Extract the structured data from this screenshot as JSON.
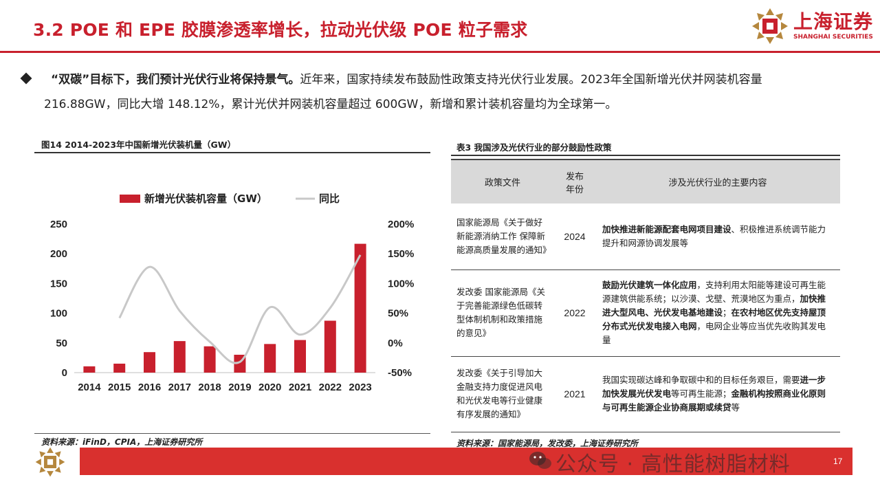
{
  "header": {
    "title": "3.2 POE 和 EPE 胶膜渗透率增长，拉动光伏级 POE 粒子需求",
    "logo_cn": "上海证券",
    "logo_en": "SHANGHAI SECURITIES",
    "accent_color": "#c8202d"
  },
  "bullet": {
    "lead": "“双碳”目标下，我们预计光伏行业将保持景气。",
    "line1_rest": "近年来，国家持续发布鼓励性政策支持光伏行业发展。2023年全国新增光伏并网装机容量",
    "line2": "216.88GW，同比大增 148.12%，累计光伏并网装机容量超过 600GW，新增和累计装机容量均为全球第一。"
  },
  "figure": {
    "title": "图14 2014-2023年中国新增光伏装机量（GW）",
    "source": "资料来源：iFinD，CPIA，上海证券研究所"
  },
  "chart_data": {
    "type": "bar",
    "categories": [
      "2014",
      "2015",
      "2016",
      "2017",
      "2018",
      "2019",
      "2020",
      "2021",
      "2022",
      "2023"
    ],
    "series": [
      {
        "name": "新增光伏装机容量（GW）",
        "type": "bar",
        "axis": "left",
        "color": "#c8202d",
        "values": [
          10.6,
          15.1,
          34.5,
          53.1,
          44.3,
          30.1,
          48.2,
          54.9,
          87.4,
          216.9
        ]
      },
      {
        "name": "同比",
        "type": "line",
        "axis": "right",
        "color": "#c8c8c8",
        "values": [
          null,
          42.0,
          128.0,
          54.0,
          2.0,
          -32.0,
          60.0,
          14.0,
          59.0,
          148.1
        ]
      }
    ],
    "left_axis": {
      "ticks": [
        "0",
        "50",
        "100",
        "150",
        "200",
        "250"
      ],
      "ylim": [
        0,
        250
      ]
    },
    "right_axis": {
      "ticks": [
        "-50%",
        "0%",
        "50%",
        "100%",
        "150%",
        "200%"
      ],
      "ylim": [
        -50,
        200
      ]
    },
    "legend_position": "top",
    "grid": false
  },
  "table": {
    "title": "表3 我国涉及光伏行业的部分鼓励性政策",
    "headers": [
      "政策文件",
      "发布年份",
      "涉及光伏行业的主要内容"
    ],
    "header_year_l1": "发布",
    "header_year_l2": "年份",
    "rows": [
      {
        "doc": "国家能源局《关于做好新能源消纳工作 保障新能源高质量发展的通知》",
        "year": "2024",
        "b1": "加快推进新能源配套电网项目建设",
        "t1": "、积极推进系统调节能力提升和网源协调发展等"
      },
      {
        "doc": "发改委 国家能源局《关于完善能源绿色低碳转型体制机制和政策措施的意见》",
        "year": "2022",
        "b1": "鼓励光伏建筑一体化应用",
        "t1": "，支持利用太阳能等建设可再生能源建筑供能系统；以沙漠、戈壁、荒漠地区为重点，",
        "b2": "加快推进大型风电、光伏发电基地建设",
        "t2": "；",
        "t3": "在农村地区优先支持屋顶分布式光伏发电接入电网",
        "t4": "，电网企业等应当优先收购其发电量"
      },
      {
        "doc": "发改委《关于引导加大金融支持力度促进风电和光伏发电等行业健康有序发展的通知》",
        "year": "2021",
        "t0": "我国实现碳达峰和争取碳中和的目标任务艰巨，需要",
        "b1": "进一步加快发展光伏发电",
        "t1": "等可再生能源；",
        "b2": "金融机构按照商业化原则与可再生能源企业协商展期或续贷",
        "t2": "等"
      }
    ],
    "source": "资料来源：国家能源局，发改委，上海证券研究所"
  },
  "footer": {
    "watermark": "公众号 · 高性能树脂材料",
    "page": "17"
  }
}
